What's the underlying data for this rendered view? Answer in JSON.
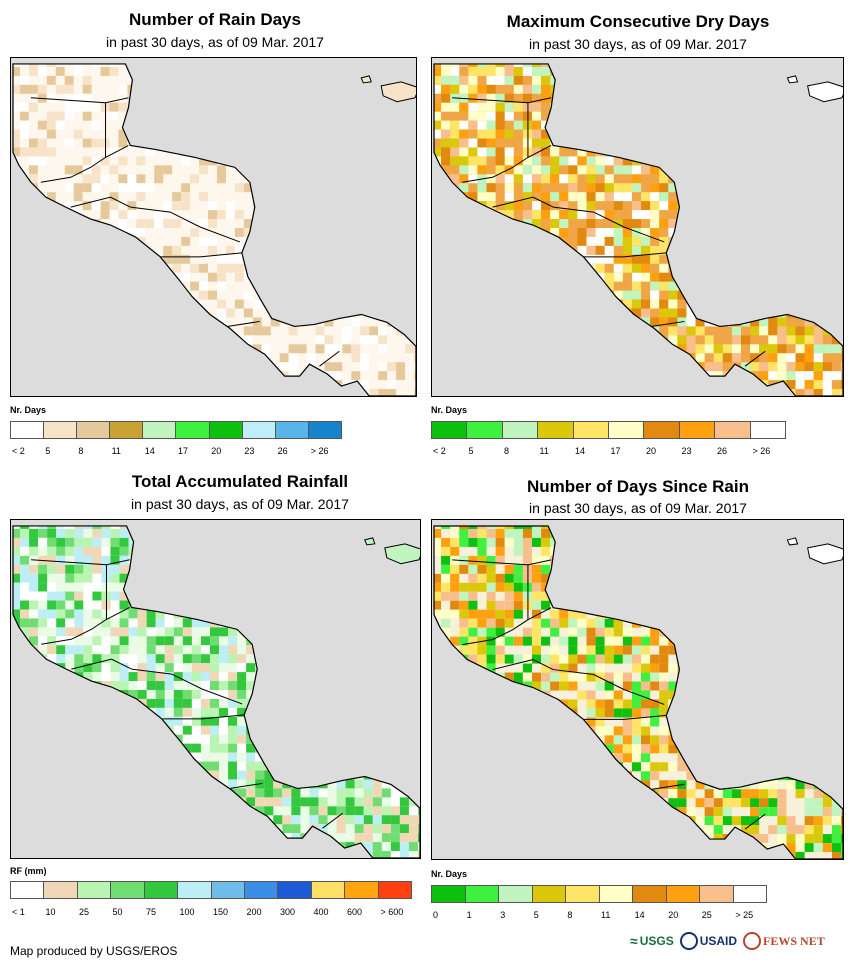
{
  "panels": [
    {
      "title": "Number of Rain Days",
      "subtitle": "in past 30 days, as of 09 Mar. 2017",
      "legend_title": "Nr. Days",
      "legend_colors": [
        "#ffffff",
        "#f7e3c8",
        "#e6c99a",
        "#c8a234",
        "#c0f5c0",
        "#3ff03f",
        "#10c010",
        "#bfeef8",
        "#5ab4ea",
        "#1684cc"
      ],
      "legend_labels": [
        "< 2",
        "5",
        "8",
        "11",
        "14",
        "17",
        "20",
        "23",
        "26",
        "> 26"
      ],
      "land_fill": "#fdf7ee"
    },
    {
      "title": "Maximum Consecutive Dry Days",
      "subtitle": "in past 30 days, as of 09 Mar. 2017",
      "legend_title": "Nr. Days",
      "legend_colors": [
        "#10c010",
        "#3ff03f",
        "#c0f5c0",
        "#dcc80a",
        "#ffe566",
        "#ffffc8",
        "#e18a0f",
        "#ffa010",
        "#f8bf8c",
        "#ffffff"
      ],
      "legend_labels": [
        "< 2",
        "5",
        "8",
        "11",
        "14",
        "17",
        "20",
        "23",
        "26",
        "> 26"
      ],
      "land_fill": "#f0a646"
    },
    {
      "title": "Total Accumulated Rainfall",
      "subtitle": "in past 30 days, as of 09 Mar. 2017",
      "legend_title": "RF (mm)",
      "legend_colors": [
        "#ffffff",
        "#f0d8b6",
        "#b9f4b2",
        "#6fdd72",
        "#34c83e",
        "#bdeef6",
        "#70bde9",
        "#3a8ee6",
        "#1d5bd6",
        "#ffe066",
        "#ffa510",
        "#ff4010"
      ],
      "legend_labels": [
        "< 1",
        "10",
        "25",
        "50",
        "75",
        "100",
        "150",
        "200",
        "300",
        "400",
        "600",
        "> 600"
      ],
      "land_fill": "#eafbe6"
    },
    {
      "title": "Number of Days Since Rain",
      "subtitle": "in past 30 days, as of 09 Mar. 2017",
      "legend_title": "Nr. Days",
      "legend_colors": [
        "#10c010",
        "#3ff03f",
        "#c0f5c0",
        "#dcc80a",
        "#ffe566",
        "#ffffc8",
        "#e18a0f",
        "#ffa010",
        "#f8bf8c",
        "#ffffff"
      ],
      "legend_labels": [
        "0",
        "1",
        "3",
        "5",
        "8",
        "11",
        "14",
        "20",
        "25",
        "> 25"
      ],
      "land_fill": "#f6f1d8"
    }
  ],
  "credit": "Map produced by USGS/EROS",
  "logos": [
    "USGS",
    "USAID",
    "FEWS NET"
  ]
}
